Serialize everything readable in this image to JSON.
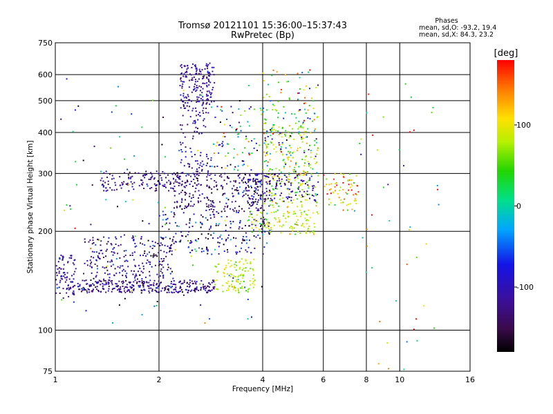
{
  "chart_data": {
    "type": "scatter",
    "title": "Tromsø 20121101 15:36:00–15:37:43",
    "subtitle": "RwPretec (Bp)",
    "xlabel": "Frequency [MHz]",
    "ylabel": "Stationary phase Virtual Height [km]",
    "x_scale": "log",
    "y_scale": "log",
    "xlim": [
      1,
      16
    ],
    "ylim": [
      75,
      750
    ],
    "x_ticks": [
      1,
      2,
      4,
      6,
      8,
      10,
      16
    ],
    "x_tick_labels": [
      "1",
      "2",
      "4",
      "6",
      "8",
      "10",
      "16"
    ],
    "y_ticks": [
      75,
      100,
      200,
      300,
      400,
      500,
      600,
      750
    ],
    "y_tick_labels": [
      "75",
      "100",
      "200",
      "300",
      "400",
      "500",
      "600",
      "750"
    ],
    "grid": true,
    "legend": {
      "title": "Phases",
      "lines": [
        "mean, sd,O: -93.2, 19.4",
        "mean, sd,X:  84.3, 23.2"
      ],
      "placement": "top-right"
    },
    "colorbar": {
      "label": "[deg]",
      "range": [
        -180,
        180
      ],
      "ticks": [
        100,
        0,
        -100
      ],
      "tick_labels": [
        "100",
        "0",
        "-100"
      ],
      "colormap": "rainbow"
    },
    "point_color_encodes": "phase [deg]",
    "clusters": [
      {
        "x_range": [
          1.0,
          1.15
        ],
        "y_range": [
          125,
          170
        ],
        "phase_mean": -110,
        "phase_sd": 20,
        "count": 90
      },
      {
        "x_range": [
          1.15,
          2.9
        ],
        "y_range": [
          130,
          142
        ],
        "phase_mean": -120,
        "phase_sd": 25,
        "count": 320
      },
      {
        "x_range": [
          1.2,
          2.2
        ],
        "y_range": [
          142,
          195
        ],
        "phase_mean": -115,
        "phase_sd": 30,
        "count": 230
      },
      {
        "x_range": [
          1.35,
          2.6
        ],
        "y_range": [
          265,
          305
        ],
        "phase_mean": -120,
        "phase_sd": 25,
        "count": 150
      },
      {
        "x_range": [
          2.3,
          2.9
        ],
        "y_range": [
          480,
          650
        ],
        "phase_mean": -110,
        "phase_sd": 20,
        "count": 170
      },
      {
        "x_range": [
          2.3,
          2.8
        ],
        "y_range": [
          300,
          480
        ],
        "phase_mean": -110,
        "phase_sd": 25,
        "count": 90
      },
      {
        "x_range": [
          2.2,
          4.2
        ],
        "y_range": [
          230,
          300
        ],
        "phase_mean": -130,
        "phase_sd": 30,
        "count": 260
      },
      {
        "x_range": [
          2.0,
          4.2
        ],
        "y_range": [
          170,
          230
        ],
        "phase_mean": -100,
        "phase_sd": 60,
        "count": 200
      },
      {
        "x_range": [
          2.9,
          3.8
        ],
        "y_range": [
          130,
          165
        ],
        "phase_mean": 80,
        "phase_sd": 20,
        "count": 110
      },
      {
        "x_range": [
          3.6,
          5.8
        ],
        "y_range": [
          195,
          230
        ],
        "phase_mean": 85,
        "phase_sd": 25,
        "count": 110
      },
      {
        "x_range": [
          4.0,
          5.8
        ],
        "y_range": [
          230,
          420
        ],
        "phase_mean": 80,
        "phase_sd": 30,
        "count": 220
      },
      {
        "x_range": [
          3.5,
          5.8
        ],
        "y_range": [
          245,
          300
        ],
        "phase_mean": -115,
        "phase_sd": 30,
        "count": 140
      },
      {
        "x_range": [
          2.8,
          5.8
        ],
        "y_range": [
          300,
          480
        ],
        "phase_mean": 0,
        "phase_sd": 110,
        "count": 170
      },
      {
        "x_range": [
          6.0,
          7.6
        ],
        "y_range": [
          230,
          300
        ],
        "phase_mean": 120,
        "phase_sd": 50,
        "count": 70
      },
      {
        "x_range": [
          4.0,
          5.8
        ],
        "y_range": [
          430,
          620
        ],
        "phase_mean": 60,
        "phase_sd": 90,
        "count": 60
      },
      {
        "x_range": [
          7.6,
          13.0
        ],
        "y_range": [
          75,
          640
        ],
        "phase_mean": 60,
        "phase_sd": 110,
        "count": 45
      },
      {
        "x_range": [
          1.0,
          4.0
        ],
        "y_range": [
          100,
          600
        ],
        "phase_mean": -60,
        "phase_sd": 100,
        "count": 120
      }
    ]
  }
}
